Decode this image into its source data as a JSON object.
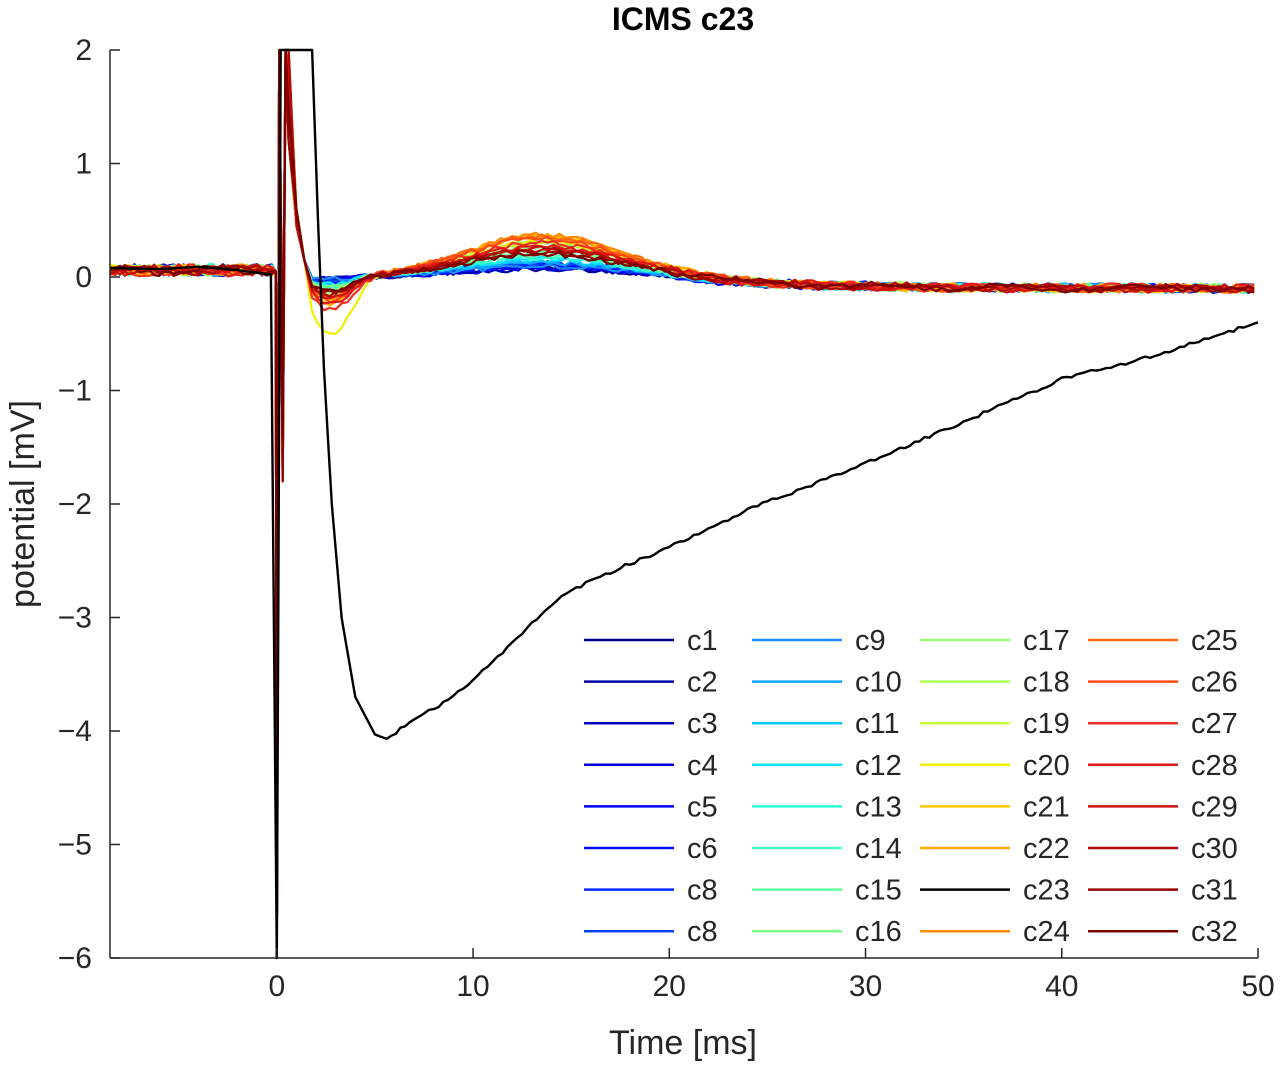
{
  "chart_data": {
    "type": "line",
    "title": "ICMS c23",
    "xlabel": "Time [ms]",
    "ylabel": "potential [mV]",
    "xlim": [
      -8.5,
      50
    ],
    "ylim": [
      -6,
      2
    ],
    "xticks": [
      0,
      10,
      20,
      30,
      40,
      50
    ],
    "yticks": [
      2,
      1,
      0,
      -1,
      -2,
      -3,
      -4,
      -5,
      -6
    ],
    "grid": false,
    "legend_position": "bottom-right",
    "legend_columns": 4,
    "series": [
      {
        "name": "c1",
        "color": "#00008f",
        "peak": 0.08,
        "trough": -0.02
      },
      {
        "name": "c2",
        "color": "#0000a8",
        "peak": 0.07,
        "trough": -0.03
      },
      {
        "name": "c3",
        "color": "#0000c2",
        "peak": 0.09,
        "trough": -0.02
      },
      {
        "name": "c4",
        "color": "#0000db",
        "peak": 0.08,
        "trough": -0.04
      },
      {
        "name": "c5",
        "color": "#0000f5",
        "peak": 0.1,
        "trough": -0.03
      },
      {
        "name": "c6",
        "color": "#0010ff",
        "peak": 0.11,
        "trough": -0.05
      },
      {
        "name": "c8",
        "color": "#002aff",
        "peak": 0.12,
        "trough": -0.04
      },
      {
        "name": "c8",
        "color": "#0044ff",
        "peak": 0.12,
        "trough": -0.05
      },
      {
        "name": "c9",
        "color": "#1a8cff",
        "peak": 0.1,
        "trough": -0.02
      },
      {
        "name": "c10",
        "color": "#0aa5ff",
        "peak": 0.13,
        "trough": -0.06
      },
      {
        "name": "c11",
        "color": "#00c8ff",
        "peak": 0.15,
        "trough": -0.08
      },
      {
        "name": "c12",
        "color": "#10e0ff",
        "peak": 0.16,
        "trough": -0.07
      },
      {
        "name": "c13",
        "color": "#2affd6",
        "peak": 0.17,
        "trough": -0.1
      },
      {
        "name": "c14",
        "color": "#44ffbb",
        "peak": 0.19,
        "trough": -0.09
      },
      {
        "name": "c15",
        "color": "#5fffa0",
        "peak": 0.22,
        "trough": -0.12
      },
      {
        "name": "c16",
        "color": "#79ff86",
        "peak": 0.25,
        "trough": -0.1
      },
      {
        "name": "c17",
        "color": "#93ff6c",
        "peak": 0.3,
        "trough": -0.12
      },
      {
        "name": "c18",
        "color": "#adff52",
        "peak": 0.28,
        "trough": -0.15
      },
      {
        "name": "c19",
        "color": "#c8ff37",
        "peak": 0.3,
        "trough": -0.18
      },
      {
        "name": "c20",
        "color": "#f0f000",
        "peak": 0.32,
        "trough": -0.52
      },
      {
        "name": "c21",
        "color": "#ffc800",
        "peak": 0.35,
        "trough": -0.22
      },
      {
        "name": "c22",
        "color": "#ffae00",
        "peak": 0.36,
        "trough": -0.25
      },
      {
        "name": "c23",
        "color": "#000000",
        "peak": 0.0,
        "trough": -4.07
      },
      {
        "name": "c24",
        "color": "#ff8a00",
        "peak": 0.37,
        "trough": -0.2
      },
      {
        "name": "c25",
        "color": "#ff6a0a",
        "peak": 0.36,
        "trough": -0.18
      },
      {
        "name": "c26",
        "color": "#ff4a14",
        "peak": 0.34,
        "trough": -0.22
      },
      {
        "name": "c27",
        "color": "#f03020",
        "peak": 0.3,
        "trough": -0.3
      },
      {
        "name": "c28",
        "color": "#e01818",
        "peak": 0.27,
        "trough": -0.24
      },
      {
        "name": "c29",
        "color": "#cc1010",
        "peak": 0.25,
        "trough": -0.19
      },
      {
        "name": "c30",
        "color": "#b00a0a",
        "peak": 0.24,
        "trough": -0.16
      },
      {
        "name": "c31",
        "color": "#960000",
        "peak": 0.22,
        "trough": -0.14
      },
      {
        "name": "c32",
        "color": "#7a0000",
        "peak": 0.2,
        "trough": -0.12
      }
    ],
    "c23_curve": [
      [
        -8.5,
        0.08
      ],
      [
        -6,
        0.07
      ],
      [
        -4,
        0.09
      ],
      [
        -2,
        0.06
      ],
      [
        -0.3,
        0.02
      ],
      [
        0.0,
        -6.0
      ],
      [
        0.2,
        2.0
      ],
      [
        1.8,
        2.0
      ],
      [
        2.1,
        0.5
      ],
      [
        2.4,
        -0.8
      ],
      [
        2.8,
        -2.0
      ],
      [
        3.3,
        -3.0
      ],
      [
        4.0,
        -3.7
      ],
      [
        5.0,
        -4.03
      ],
      [
        5.6,
        -4.07
      ],
      [
        7,
        -3.9
      ],
      [
        9,
        -3.7
      ],
      [
        11,
        -3.4
      ],
      [
        13,
        -3.05
      ],
      [
        14.5,
        -2.8
      ],
      [
        17,
        -2.6
      ],
      [
        20,
        -2.38
      ],
      [
        24,
        -2.05
      ],
      [
        28,
        -1.78
      ],
      [
        32,
        -1.5
      ],
      [
        36,
        -1.2
      ],
      [
        40,
        -0.9
      ],
      [
        45,
        -0.68
      ],
      [
        50,
        -0.4
      ]
    ]
  }
}
